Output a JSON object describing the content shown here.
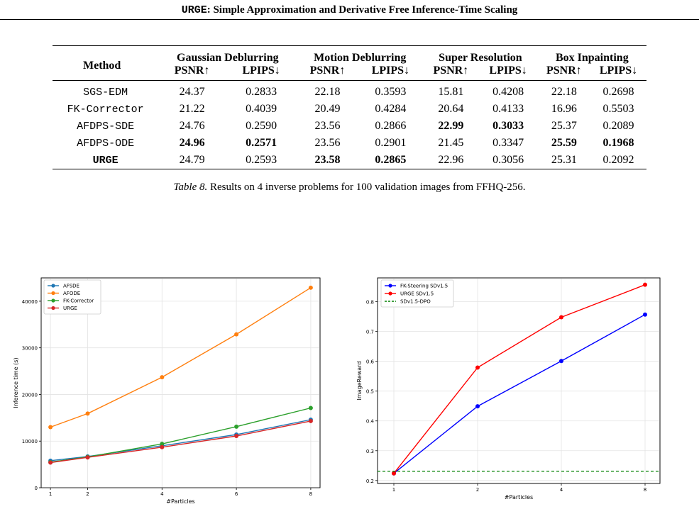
{
  "header": {
    "title_prefix": "URGE",
    "title_rest": ": Simple Approximation and Derivative Free Inference-Time Scaling"
  },
  "table": {
    "col_method": "Method",
    "groups": [
      "Gaussian Deblurring",
      "Motion Deblurring",
      "Super Resolution",
      "Box Inpainting"
    ],
    "subheaders": [
      "PSNR↑",
      "LPIPS↓",
      "PSNR↑",
      "LPIPS↓",
      "PSNR↑",
      "LPIPS↓",
      "PSNR↑",
      "LPIPS↓"
    ],
    "rows": [
      {
        "method": "SGS-EDM",
        "method_bold": false,
        "cells": [
          {
            "v": "24.37",
            "b": false
          },
          {
            "v": "0.2833",
            "b": false
          },
          {
            "v": "22.18",
            "b": false
          },
          {
            "v": "0.3593",
            "b": false
          },
          {
            "v": "15.81",
            "b": false
          },
          {
            "v": "0.4208",
            "b": false
          },
          {
            "v": "22.18",
            "b": false
          },
          {
            "v": "0.2698",
            "b": false
          }
        ]
      },
      {
        "method": "FK-Corrector",
        "method_bold": false,
        "cells": [
          {
            "v": "21.22",
            "b": false
          },
          {
            "v": "0.4039",
            "b": false
          },
          {
            "v": "20.49",
            "b": false
          },
          {
            "v": "0.4284",
            "b": false
          },
          {
            "v": "20.64",
            "b": false
          },
          {
            "v": "0.4133",
            "b": false
          },
          {
            "v": "16.96",
            "b": false
          },
          {
            "v": "0.5503",
            "b": false
          }
        ]
      },
      {
        "method": "AFDPS-SDE",
        "method_bold": false,
        "cells": [
          {
            "v": "24.76",
            "b": false
          },
          {
            "v": "0.2590",
            "b": false
          },
          {
            "v": "23.56",
            "b": false
          },
          {
            "v": "0.2866",
            "b": false
          },
          {
            "v": "22.99",
            "b": true
          },
          {
            "v": "0.3033",
            "b": true
          },
          {
            "v": "25.37",
            "b": false
          },
          {
            "v": "0.2089",
            "b": false
          }
        ]
      },
      {
        "method": "AFDPS-ODE",
        "method_bold": false,
        "cells": [
          {
            "v": "24.96",
            "b": true
          },
          {
            "v": "0.2571",
            "b": true
          },
          {
            "v": "23.56",
            "b": false
          },
          {
            "v": "0.2901",
            "b": false
          },
          {
            "v": "21.45",
            "b": false
          },
          {
            "v": "0.3347",
            "b": false
          },
          {
            "v": "25.59",
            "b": true
          },
          {
            "v": "0.1968",
            "b": true
          }
        ]
      },
      {
        "method": "URGE",
        "method_bold": true,
        "cells": [
          {
            "v": "24.79",
            "b": false
          },
          {
            "v": "0.2593",
            "b": false
          },
          {
            "v": "23.58",
            "b": true
          },
          {
            "v": "0.2865",
            "b": true
          },
          {
            "v": "22.96",
            "b": false
          },
          {
            "v": "0.3056",
            "b": false
          },
          {
            "v": "25.31",
            "b": false
          },
          {
            "v": "0.2092",
            "b": false
          }
        ]
      }
    ]
  },
  "caption": {
    "label": "Table 8.",
    "text": "Results on 4 inverse problems for 100 validation images from FFHQ-256."
  },
  "chart_data": [
    {
      "type": "line",
      "xlabel": "#Particles",
      "ylabel": "Inference time (s)",
      "x": [
        1,
        2,
        4,
        6,
        8
      ],
      "xlim": [
        0.75,
        8.25
      ],
      "ylim": [
        0,
        45000
      ],
      "yticks": [
        0,
        10000,
        20000,
        30000,
        40000
      ],
      "grid": true,
      "legend": "top-left",
      "series": [
        {
          "name": "AFSDE",
          "color": "#1f77b4",
          "values": [
            5800,
            6700,
            9000,
            11400,
            14600
          ]
        },
        {
          "name": "AFODE",
          "color": "#ff7f0e",
          "values": [
            13000,
            15900,
            23700,
            32900,
            42900
          ]
        },
        {
          "name": "FK-Corrector",
          "color": "#2ca02c",
          "values": [
            5500,
            6600,
            9400,
            13100,
            17100
          ]
        },
        {
          "name": "URGE",
          "color": "#d62728",
          "values": [
            5400,
            6500,
            8700,
            11100,
            14300
          ]
        }
      ]
    },
    {
      "type": "line",
      "xlabel": "#Particles",
      "ylabel": "ImageReward",
      "x": [
        1,
        2,
        4,
        8
      ],
      "x_positions": "categorical",
      "ylim": [
        0.19,
        0.88
      ],
      "yticks": [
        0.2,
        0.3,
        0.4,
        0.5,
        0.6,
        0.7,
        0.8
      ],
      "grid": true,
      "legend": "top-left",
      "series": [
        {
          "name": "FK-Steering SDv1.5",
          "color": "#0000ff",
          "values": [
            0.224,
            0.449,
            0.601,
            0.757
          ]
        },
        {
          "name": "URGE SDv1.5",
          "color": "#ff0000",
          "values": [
            0.224,
            0.579,
            0.748,
            0.857
          ]
        },
        {
          "name": "SDv1.5-DPO",
          "color": "#008000",
          "dashed": true,
          "hline": 0.231
        }
      ]
    }
  ]
}
